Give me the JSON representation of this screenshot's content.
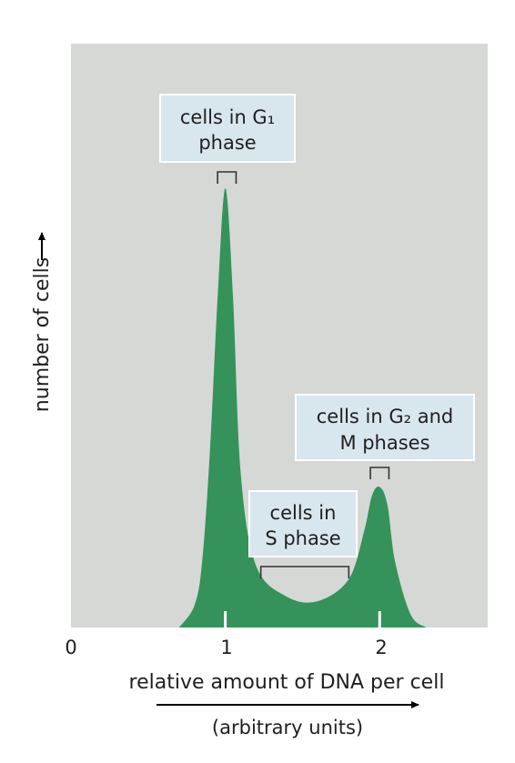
{
  "chart_data": {
    "type": "area",
    "x": [
      0.7,
      0.8,
      0.85,
      0.9,
      0.95,
      1.0,
      1.05,
      1.1,
      1.2,
      1.4,
      1.6,
      1.8,
      1.9,
      1.95,
      2.0,
      2.05,
      2.1,
      2.2,
      2.3
    ],
    "y": [
      0,
      0.05,
      0.15,
      0.4,
      0.75,
      1.0,
      0.75,
      0.35,
      0.14,
      0.07,
      0.06,
      0.11,
      0.22,
      0.3,
      0.32,
      0.28,
      0.15,
      0.03,
      0
    ],
    "xlabel": "relative amount of DNA per cell",
    "xlabel_units": "(arbitrary units)",
    "ylabel": "number of cells",
    "xlim": [
      0,
      2.7
    ],
    "x_ticks": [
      "0",
      "1",
      "2"
    ],
    "grid": false,
    "legend": "none",
    "colors": {
      "plot_background": "#d5d8d5",
      "area_fill": "#35925a",
      "label_box": "#d8e6ee",
      "axis_arrow": "#000000"
    },
    "annotations": [
      {
        "id": "g1",
        "lines": [
          "cells in G₁",
          "phase"
        ],
        "bracket_x": [
          0.95,
          1.07
        ]
      },
      {
        "id": "g2m",
        "lines": [
          "cells in G₂ and",
          "M phases"
        ],
        "bracket_x": [
          1.94,
          2.06
        ]
      },
      {
        "id": "s",
        "lines": [
          "cells in",
          "S phase"
        ],
        "bracket_x": [
          1.23,
          1.8
        ]
      }
    ]
  }
}
